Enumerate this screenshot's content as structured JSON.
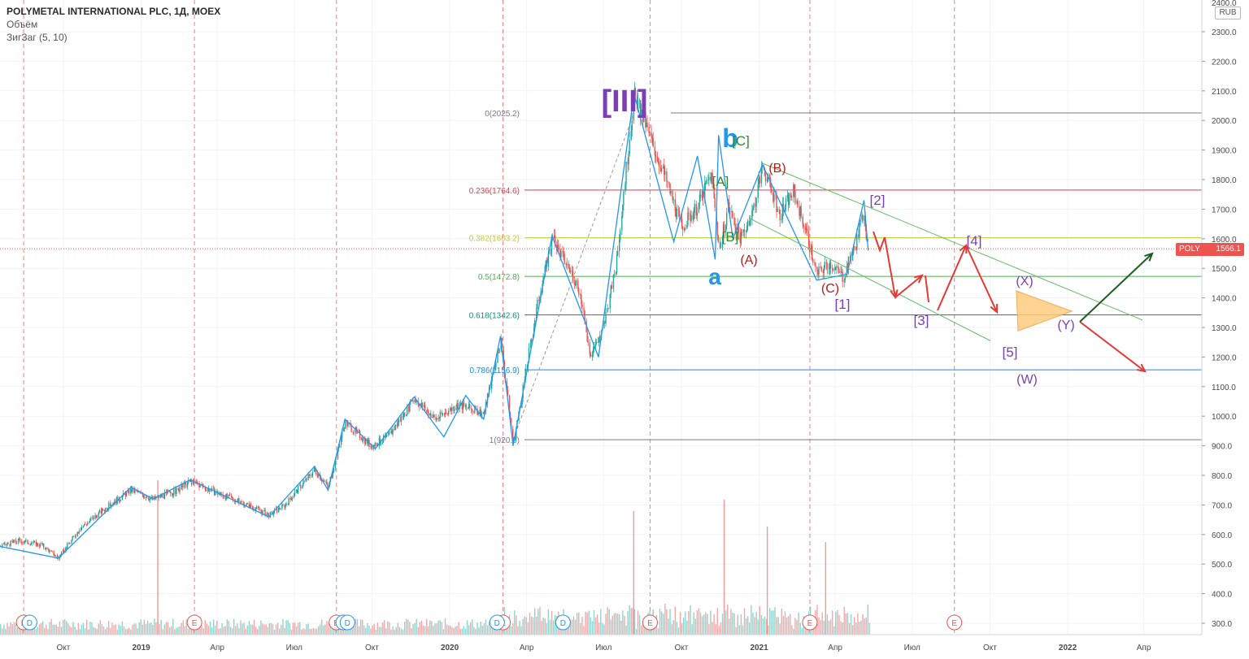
{
  "header": {
    "symbol": "POLYMETAL INTERNATIONAL PLC, 1Д, MOEX",
    "indicator_1": "Объём",
    "indicator_2": "ЗигЗаг (5, 10)"
  },
  "axis": {
    "unit": "RUB",
    "last_price": "1566.1",
    "ticker": "POLY",
    "top_partial_tick": "2400.0"
  },
  "colors": {
    "up": "#26a69a",
    "down": "#ef5350",
    "zigzag": "#2196f3",
    "fib_0": "#787b86",
    "fib_0236": "#f23645",
    "fib_0382": "#c0ca33",
    "fib_05": "#4caf50",
    "fib_0618": "#009688",
    "fib_0786": "#1e88e5",
    "fib_1": "#787b86",
    "purple_labels": "#7b3fb5",
    "green_labels": "#2e8b2e",
    "red_labels": "#b71c1c",
    "blue_labels": "#2196f3",
    "red_arrows": "#e53935",
    "green_arrow": "#1b5e20",
    "triangle_fill": "#ffcc80",
    "triangle_stroke": "#f4a64a"
  },
  "chart_data": {
    "type": "candlestick",
    "y_axis": {
      "ylim": [
        250,
        2420
      ],
      "ticks": [
        300,
        400,
        500,
        600,
        700,
        800,
        900,
        1000,
        1100,
        1200,
        1300,
        1400,
        1500,
        1600,
        1700,
        1800,
        1900,
        2000,
        2100,
        2200,
        2300
      ],
      "tick_labels": [
        "300.0",
        "400.0",
        "500.0",
        "600.0",
        "700.0",
        "800.0",
        "900.0",
        "1000.0",
        "1100.0",
        "1200.0",
        "1300.0",
        "1400.0",
        "1500.0",
        "1600.0",
        "1700.0",
        "1800.0",
        "1900.0",
        "2000.0",
        "2100.0",
        "2200.0",
        "2300.0"
      ]
    },
    "x_axis": {
      "labels": [
        {
          "text": "Окт",
          "date": "2018-10-01",
          "bold": false
        },
        {
          "text": "2019",
          "date": "2019-01-01",
          "bold": true
        },
        {
          "text": "Апр",
          "date": "2019-04-01",
          "bold": false
        },
        {
          "text": "Июл",
          "date": "2019-07-01",
          "bold": false
        },
        {
          "text": "Окт",
          "date": "2019-10-01",
          "bold": false
        },
        {
          "text": "2020",
          "date": "2020-01-01",
          "bold": true
        },
        {
          "text": "Апр",
          "date": "2020-04-01",
          "bold": false
        },
        {
          "text": "Июл",
          "date": "2020-07-01",
          "bold": false
        },
        {
          "text": "Окт",
          "date": "2020-10-01",
          "bold": false
        },
        {
          "text": "2021",
          "date": "2021-01-01",
          "bold": true
        },
        {
          "text": "Апр",
          "date": "2021-04-01",
          "bold": false
        },
        {
          "text": "Июл",
          "date": "2021-07-01",
          "bold": false
        },
        {
          "text": "Окт",
          "date": "2021-10-01",
          "bold": false
        },
        {
          "text": "2022",
          "date": "2022-01-01",
          "bold": true
        },
        {
          "text": "Апр",
          "date": "2022-04-01",
          "bold": false
        }
      ]
    },
    "earnings_dates": [
      "2018-08-15",
      "2019-03-05",
      "2019-08-20",
      "2020-03-04",
      "2020-08-25",
      "2021-03-02",
      "2021-08-20"
    ],
    "dividend_dates": [
      "2018-08-22",
      "2019-08-28",
      "2019-09-02",
      "2020-02-26",
      "2020-05-14"
    ],
    "markers": {
      "earnings": "E",
      "dividend": "D"
    },
    "price_path": [
      [
        "2018-07-18",
        560
      ],
      [
        "2018-08-10",
        580
      ],
      [
        "2018-09-05",
        565
      ],
      [
        "2018-09-25",
        520
      ],
      [
        "2018-10-20",
        620
      ],
      [
        "2018-11-20",
        690
      ],
      [
        "2018-12-20",
        750
      ],
      [
        "2019-01-15",
        720
      ],
      [
        "2019-02-10",
        745
      ],
      [
        "2019-02-28",
        780
      ],
      [
        "2019-04-01",
        740
      ],
      [
        "2019-05-15",
        690
      ],
      [
        "2019-06-01",
        665
      ],
      [
        "2019-06-20",
        700
      ],
      [
        "2019-07-25",
        820
      ],
      [
        "2019-08-10",
        760
      ],
      [
        "2019-08-30",
        980
      ],
      [
        "2019-09-30",
        900
      ],
      [
        "2019-10-20",
        930
      ],
      [
        "2019-11-20",
        1060
      ],
      [
        "2019-12-15",
        990
      ],
      [
        "2020-01-10",
        1040
      ],
      [
        "2020-02-10",
        1010
      ],
      [
        "2020-03-01",
        1260
      ],
      [
        "2020-03-16",
        905
      ],
      [
        "2020-04-15",
        1400
      ],
      [
        "2020-05-01",
        1600
      ],
      [
        "2020-06-01",
        1440
      ],
      [
        "2020-06-15",
        1210
      ],
      [
        "2020-06-30",
        1290
      ],
      [
        "2020-07-15",
        1500
      ],
      [
        "2020-07-28",
        1850
      ],
      [
        "2020-08-06",
        2085
      ],
      [
        "2020-08-25",
        1940
      ],
      [
        "2020-09-15",
        1780
      ],
      [
        "2020-10-01",
        1640
      ],
      [
        "2020-10-20",
        1710
      ],
      [
        "2020-11-05",
        1820
      ],
      [
        "2020-11-15",
        1560
      ],
      [
        "2020-11-25",
        1710
      ],
      [
        "2020-12-10",
        1600
      ],
      [
        "2020-12-25",
        1700
      ],
      [
        "2021-01-05",
        1850
      ],
      [
        "2021-01-25",
        1680
      ],
      [
        "2021-02-10",
        1760
      ],
      [
        "2021-02-25",
        1630
      ],
      [
        "2021-03-10",
        1480
      ],
      [
        "2021-03-25",
        1520
      ],
      [
        "2021-04-10",
        1470
      ],
      [
        "2021-04-25",
        1580
      ],
      [
        "2021-05-05",
        1700
      ],
      [
        "2021-05-10",
        1560
      ]
    ],
    "zigzag": [
      [
        "2018-07-18",
        560
      ],
      [
        "2018-09-25",
        520
      ],
      [
        "2018-12-20",
        760
      ],
      [
        "2019-01-15",
        720
      ],
      [
        "2019-02-28",
        785
      ],
      [
        "2019-06-01",
        660
      ],
      [
        "2019-07-25",
        830
      ],
      [
        "2019-08-10",
        750
      ],
      [
        "2019-08-30",
        990
      ],
      [
        "2019-10-05",
        890
      ],
      [
        "2019-11-20",
        1065
      ],
      [
        "2019-12-25",
        930
      ],
      [
        "2020-01-20",
        1070
      ],
      [
        "2020-02-10",
        990
      ],
      [
        "2020-03-01",
        1270
      ],
      [
        "2020-03-16",
        900
      ],
      [
        "2020-05-01",
        1610
      ],
      [
        "2020-06-25",
        1200
      ],
      [
        "2020-08-06",
        2090
      ],
      [
        "2020-09-22",
        1590
      ],
      [
        "2020-10-20",
        1880
      ],
      [
        "2020-11-10",
        1530
      ],
      [
        "2020-11-14",
        1950
      ],
      [
        "2020-12-01",
        1600
      ],
      [
        "2021-01-05",
        1850
      ],
      [
        "2021-03-10",
        1460
      ],
      [
        "2021-04-15",
        1480
      ],
      [
        "2021-05-05",
        1730
      ],
      [
        "2021-05-10",
        1560
      ]
    ],
    "volume_spikes": [
      [
        "2019-01-20",
        400
      ],
      [
        "2020-08-05",
        320
      ],
      [
        "2021-01-10",
        280
      ],
      [
        "2020-11-20",
        350
      ],
      [
        "2021-03-20",
        240
      ]
    ],
    "fibonacci": {
      "levels": [
        {
          "ratio": "0",
          "price": 2025.2,
          "label": "0(2025.2)"
        },
        {
          "ratio": "0.236",
          "price": 1764.6,
          "label": "0.236(1764.6)"
        },
        {
          "ratio": "0.382",
          "price": 1603.2,
          "label": "0.382(1603.2)"
        },
        {
          "ratio": "0.5",
          "price": 1472.8,
          "label": "0.5(1472.8)"
        },
        {
          "ratio": "0.618",
          "price": 1342.6,
          "label": "0.618(1342.6)"
        },
        {
          "ratio": "0.786",
          "price": 1156.9,
          "label": "0.786(1156.9)"
        },
        {
          "ratio": "1",
          "price": 920.6,
          "label": "1(920.6)"
        }
      ]
    },
    "last_price_line": 1566.1
  },
  "wave_labels": {
    "iii": "[III]",
    "a_lower": "a",
    "b_lower": "b",
    "A_sq": "[A]",
    "B_sq": "[B]",
    "C_sq": "[C]",
    "A_par": "(A)",
    "B_par": "(B)",
    "C_par": "(C)",
    "w1": "[1]",
    "w2": "[2]",
    "w3": "[3]",
    "w4": "[4]",
    "w5": "[5]",
    "X": "(X)",
    "Y": "(Y)",
    "W": "(W)"
  }
}
